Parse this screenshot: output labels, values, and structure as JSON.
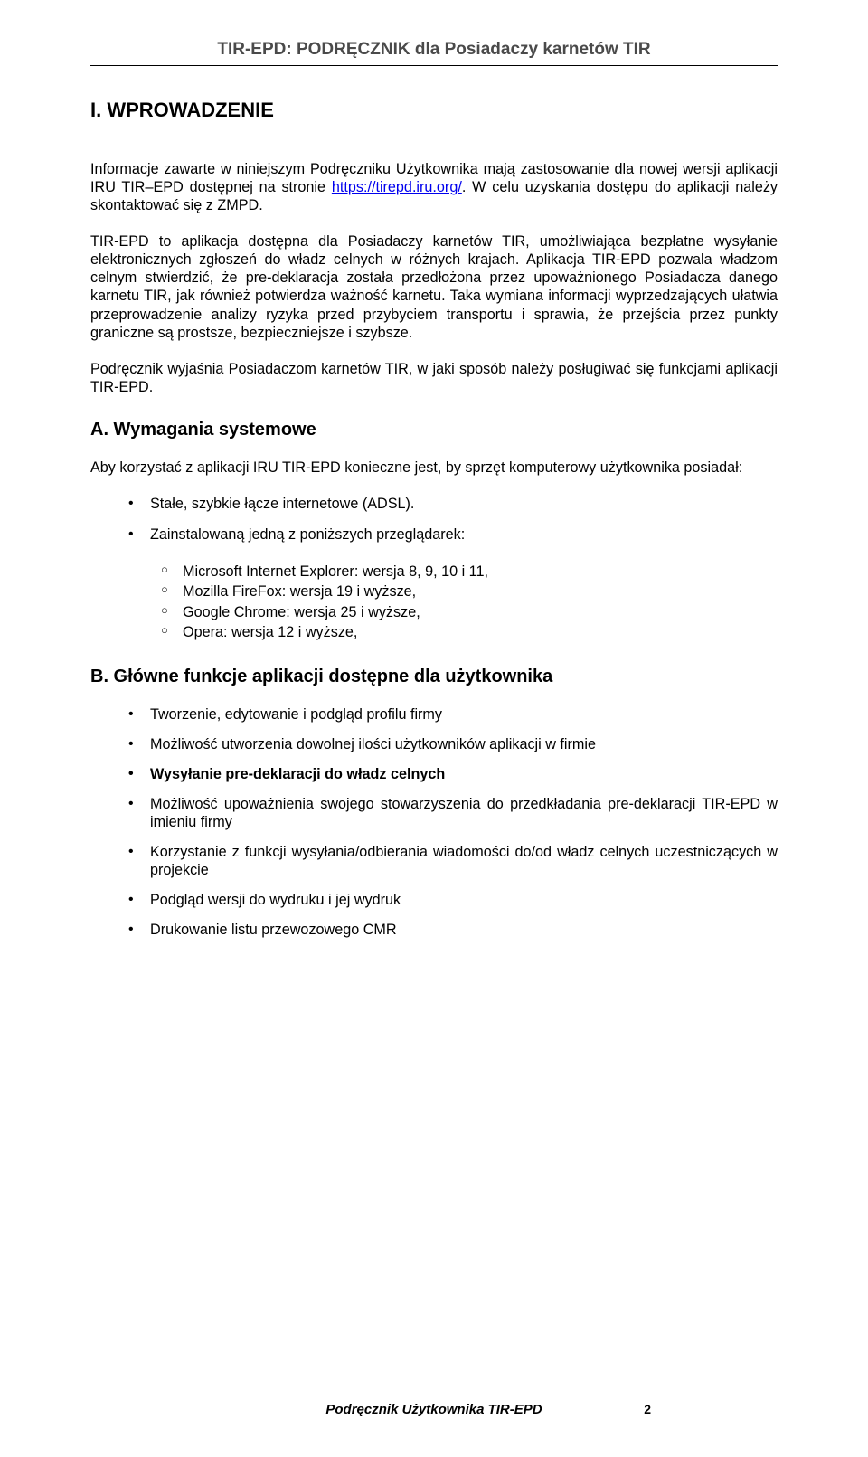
{
  "header": {
    "title": "TIR-EPD: PODRĘCZNIK dla Posiadaczy karnetów TIR"
  },
  "section": {
    "heading": "I.   WPROWADZENIE",
    "p1a": "Informacje zawarte w niniejszym Podręczniku Użytkownika mają zastosowanie dla nowej wersji aplikacji IRU TIR–EPD dostępnej na stronie ",
    "p1link": "https://tirepd.iru.org/",
    "p1b": ". W celu uzyskania dostępu do aplikacji należy skontaktować się z ZMPD.",
    "p2": "TIR-EPD to aplikacja dostępna dla Posiadaczy karnetów TIR, umożliwiająca bezpłatne wysyłanie elektronicznych zgłoszeń do władz celnych w różnych krajach. Aplikacja TIR-EPD pozwala władzom celnym stwierdzić, że pre-deklaracja została przedłożona przez upoważnionego Posiadacza danego karnetu TIR, jak również potwierdza ważność karnetu. Taka wymiana informacji wyprzedzających ułatwia przeprowadzenie analizy ryzyka przed przybyciem transportu i sprawia, że przejścia przez punkty graniczne są prostsze, bezpieczniejsze i szybsze.",
    "p3": "Podręcznik wyjaśnia Posiadaczom karnetów TIR, w jaki sposób należy posługiwać się funkcjami aplikacji TIR-EPD."
  },
  "sectionA": {
    "heading": "A. Wymagania systemowe",
    "intro": "Aby korzystać z aplikacji IRU TIR-EPD konieczne jest, by sprzęt komputerowy użytkownika posiadał:",
    "bullets": [
      "Stałe, szybkie łącze internetowe (ADSL).",
      "Zainstalowaną jedną z poniższych przeglądarek:"
    ],
    "subbullets": [
      "Microsoft Internet Explorer: wersja 8, 9, 10 i 11,",
      "Mozilla FireFox: wersja 19 i wyższe,",
      "Google Chrome: wersja 25 i wyższe,",
      "Opera: wersja 12 i wyższe,"
    ]
  },
  "sectionB": {
    "heading": "B. Główne funkcje aplikacji dostępne dla użytkownika",
    "bullets": [
      {
        "text": "Tworzenie, edytowanie i podgląd profilu firmy",
        "bold": false
      },
      {
        "text": "Możliwość utworzenia dowolnej ilości użytkowników aplikacji w firmie",
        "bold": false
      },
      {
        "text": "Wysyłanie pre-deklaracji do władz celnych",
        "bold": true
      },
      {
        "text": "Możliwość upoważnienia swojego stowarzyszenia do przedkładania pre-deklaracji TIR-EPD w imieniu firmy",
        "bold": false
      },
      {
        "text": "Korzystanie z funkcji wysyłania/odbierania wiadomości do/od władz celnych uczestniczących w projekcie",
        "bold": false
      },
      {
        "text": "Podgląd wersji do wydruku i jej wydruk",
        "bold": false
      },
      {
        "text": "Drukowanie listu przewozowego CMR",
        "bold": false
      }
    ]
  },
  "footer": {
    "title": "Podręcznik Użytkownika TIR-EPD",
    "page": "2"
  }
}
